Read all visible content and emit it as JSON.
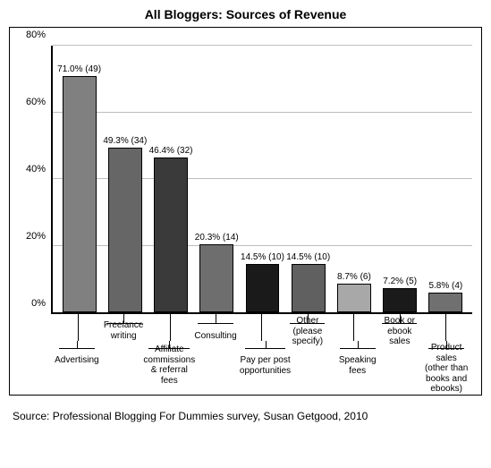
{
  "chart": {
    "type": "bar",
    "title": "All Bloggers: Sources of Revenue",
    "source": "Source: Professional Blogging For Dummies survey, Susan Getgood, 2010",
    "ylim": [
      0,
      80
    ],
    "yticks": [
      0,
      20,
      40,
      60,
      80
    ],
    "ytick_suffix": "%",
    "grid_color": "#bdbdbd",
    "axis_color": "#000000",
    "background": "#ffffff",
    "bars": [
      {
        "category": "Advertising",
        "value": 71.0,
        "count": 49,
        "label": "71.0% (49)",
        "color": "#808080",
        "label_row": "lower"
      },
      {
        "category": "Freelance writing",
        "value": 49.3,
        "count": 34,
        "label": "49.3% (34)",
        "color": "#666666",
        "label_row": "upper"
      },
      {
        "category": "Affiliate commissions & referral fees",
        "value": 46.4,
        "count": 32,
        "label": "46.4% (32)",
        "color": "#3a3a3a",
        "label_row": "lower"
      },
      {
        "category": "Consulting",
        "value": 20.3,
        "count": 14,
        "label": "20.3% (14)",
        "color": "#6e6e6e",
        "label_row": "upper"
      },
      {
        "category": "Pay per post opportunities",
        "value": 14.5,
        "count": 10,
        "label": "14.5% (10)",
        "color": "#1a1a1a",
        "label_row": "lower"
      },
      {
        "category": "Other (please specify)",
        "value": 14.5,
        "count": 10,
        "label": "14.5% (10)",
        "color": "#606060",
        "label_row": "upper"
      },
      {
        "category": "Speaking fees",
        "value": 8.7,
        "count": 6,
        "label": "8.7% (6)",
        "color": "#a8a8a8",
        "label_row": "lower"
      },
      {
        "category": "Book or ebook sales",
        "value": 7.2,
        "count": 5,
        "label": "7.2% (5)",
        "color": "#1a1a1a",
        "label_row": "upper"
      },
      {
        "category": "Product sales (other than books and ebooks)",
        "value": 5.8,
        "count": 4,
        "label": "5.8% (4)",
        "color": "#707070",
        "label_row": "lower"
      }
    ]
  }
}
